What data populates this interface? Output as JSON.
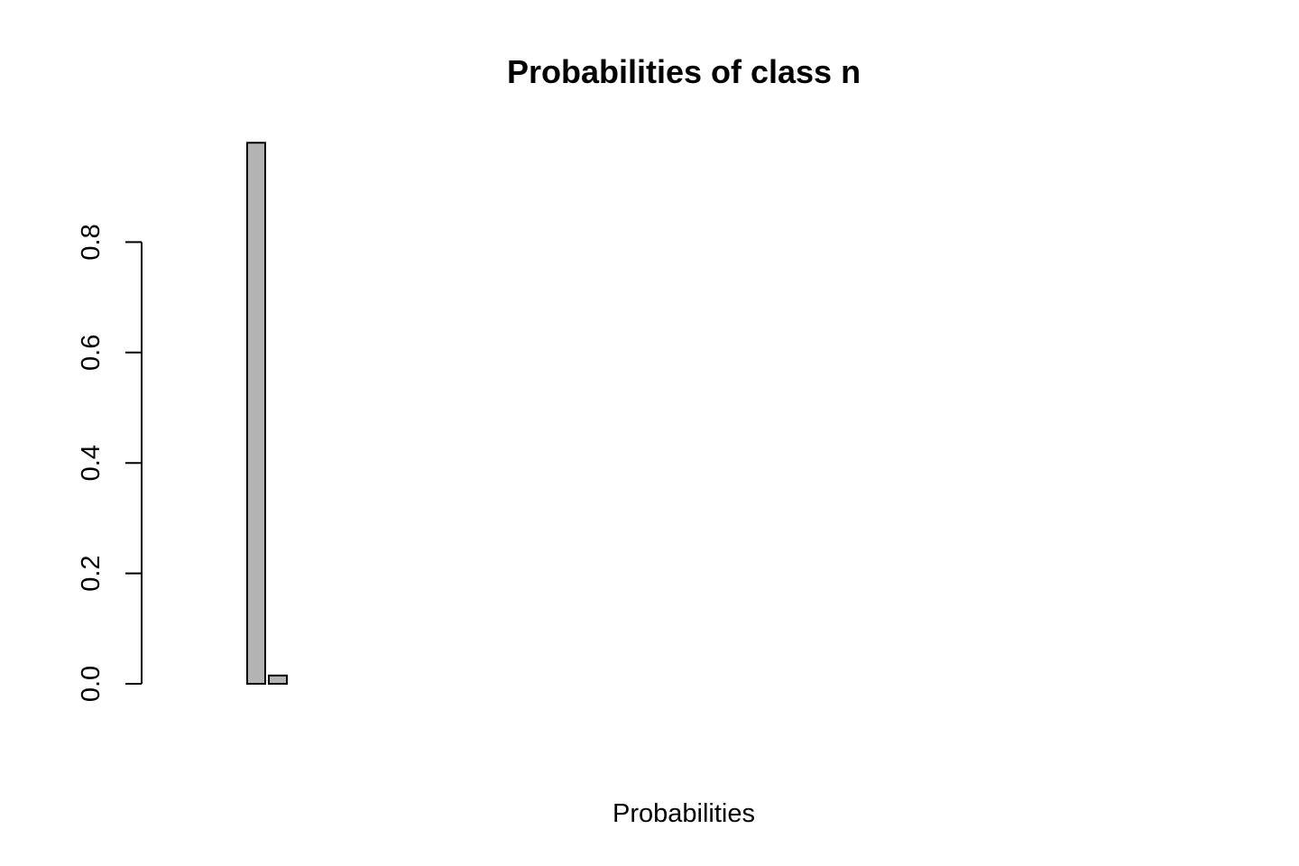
{
  "chart_data": {
    "type": "bar",
    "title": "Probabilities of class n",
    "xlabel": "Probabilities",
    "ylabel": "",
    "ylim": [
      0,
      0.98
    ],
    "yticks": [
      "0.0",
      "0.2",
      "0.4",
      "0.6",
      "0.8"
    ],
    "ytick_values": [
      0,
      0.2,
      0.4,
      0.6,
      0.8
    ],
    "grid": false,
    "legend": "none",
    "bar_fill": "#b3b3b3",
    "values": [
      0,
      0,
      0,
      0.98,
      0.015,
      0,
      0,
      0,
      0,
      0,
      0,
      0,
      0,
      0,
      0,
      0,
      0,
      0,
      0,
      0,
      0,
      0,
      0,
      0,
      0,
      0,
      0,
      0,
      0,
      0,
      0,
      0,
      0,
      0,
      0,
      0,
      0,
      0,
      0,
      0,
      0,
      0,
      0,
      0,
      0,
      0
    ]
  }
}
